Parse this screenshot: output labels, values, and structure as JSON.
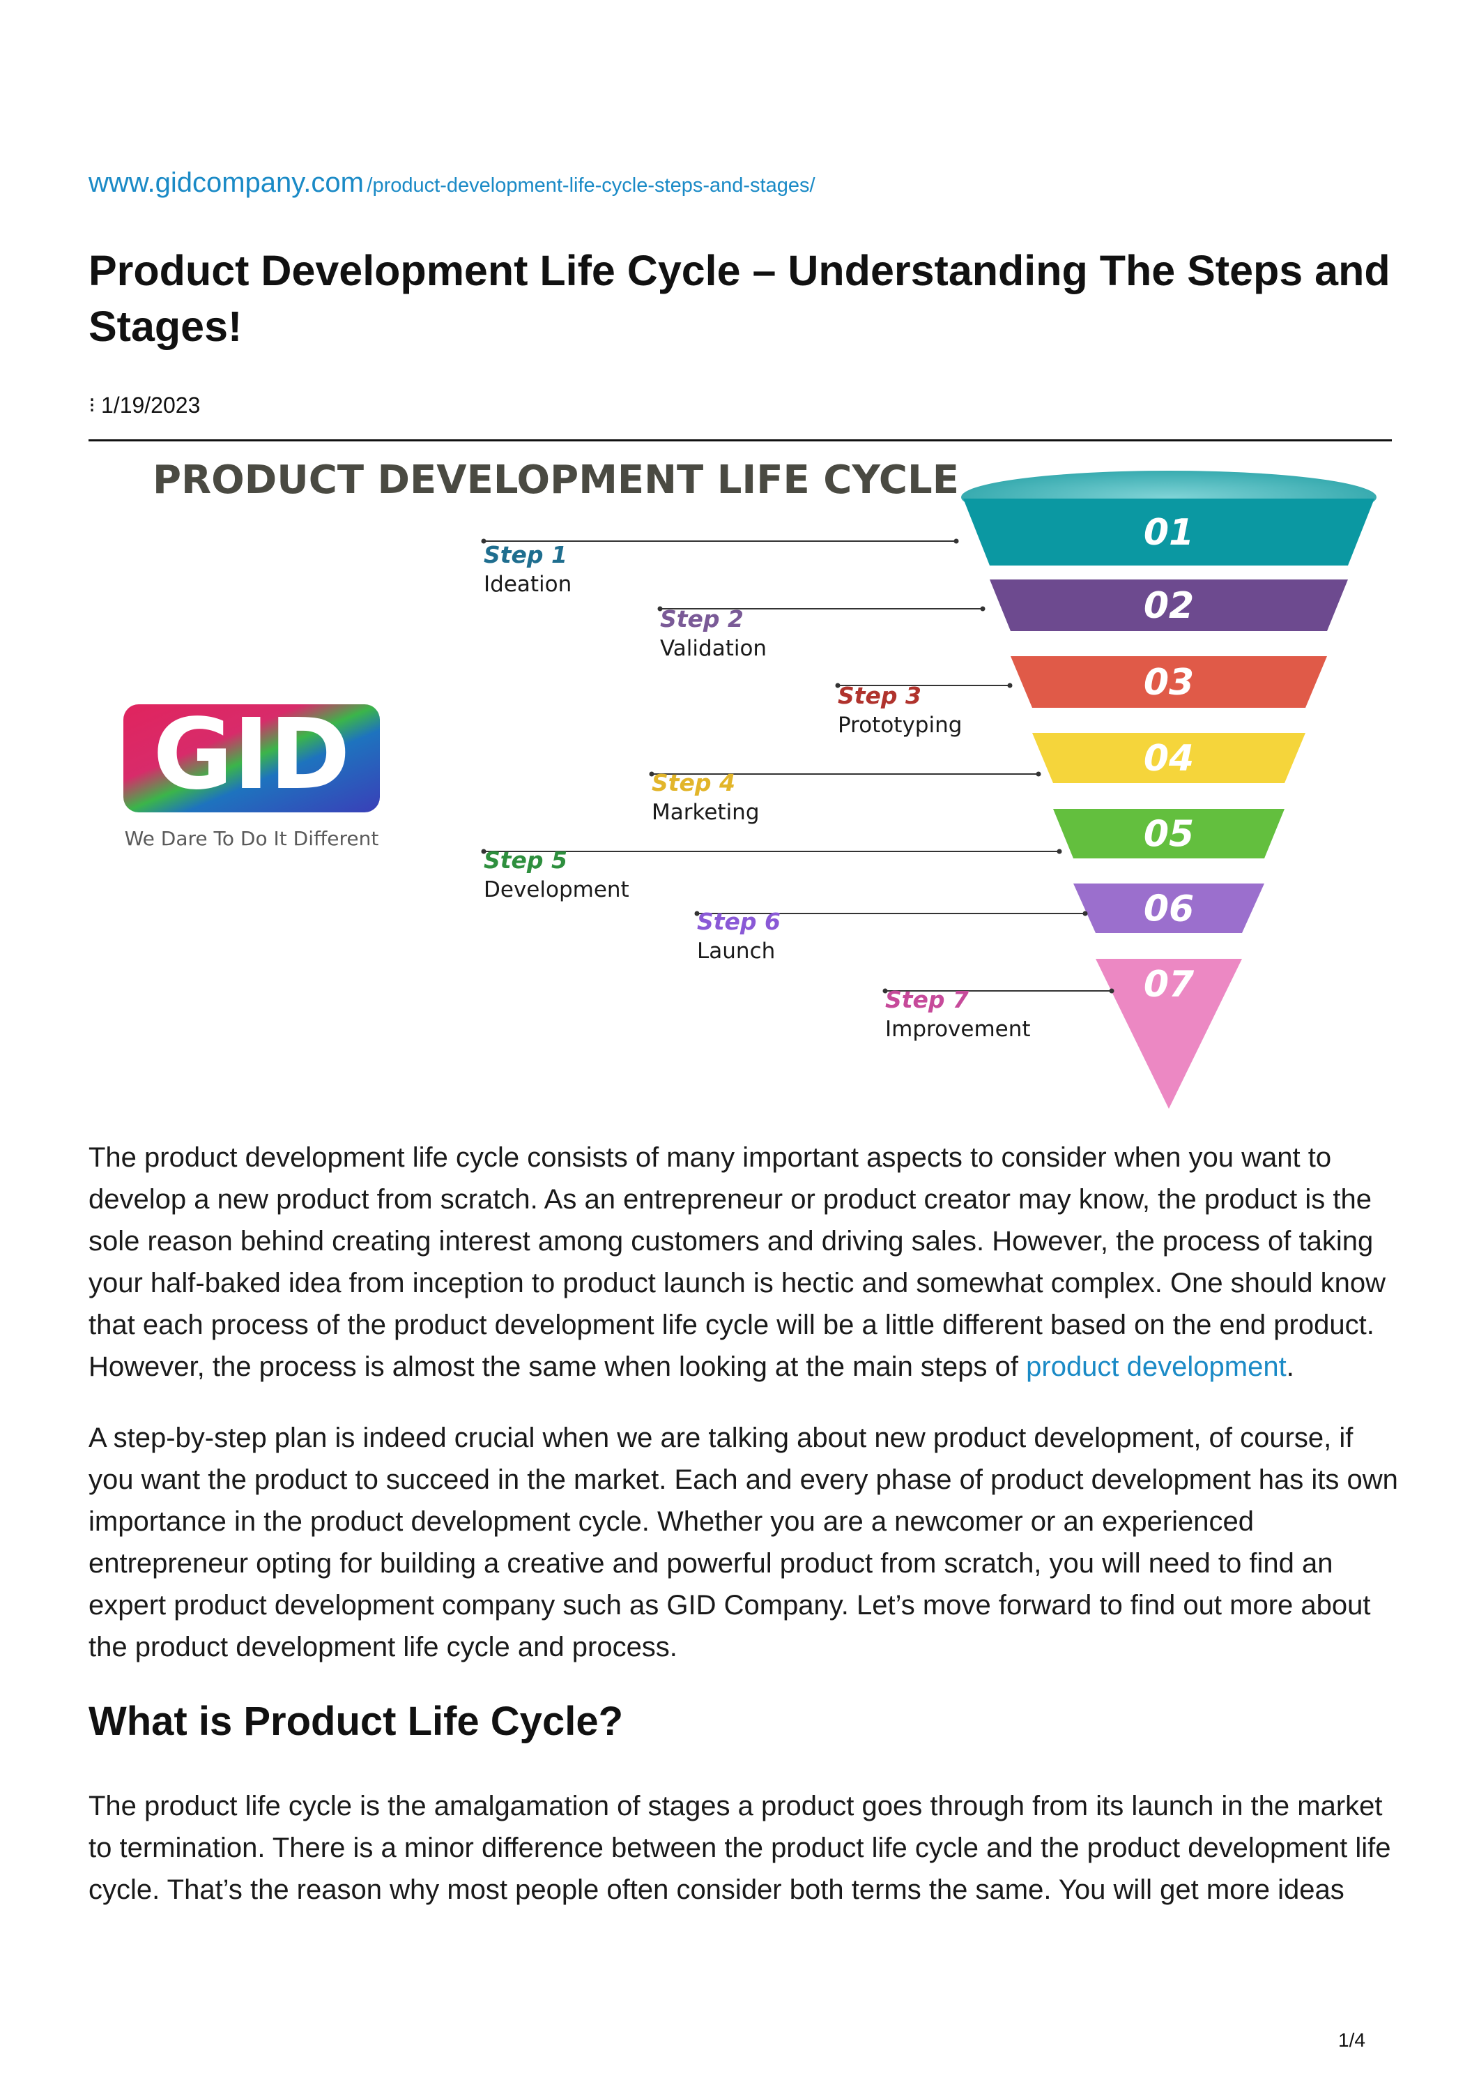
{
  "header": {
    "domain": "www.gidcompany.com",
    "path": "/product-development-life-cycle-steps-and-stages/"
  },
  "article": {
    "title": "Product Development Life Cycle – Understanding The Steps and Stages!",
    "date": "1/19/2023",
    "kebab_icon": "vertical-ellipsis"
  },
  "figure": {
    "title": "PRODUCT DEVELOPMENT LIFE CYCLE",
    "logo": {
      "text": "GID",
      "tagline": "We Dare To Do It Different"
    },
    "steps": [
      {
        "number": "01",
        "step": "Step 1",
        "label": "Ideation",
        "color": "#0b98a2"
      },
      {
        "number": "02",
        "step": "Step 2",
        "label": "Validation",
        "color": "#6d4a8f"
      },
      {
        "number": "03",
        "step": "Step 3",
        "label": "Prototyping",
        "color": "#e05a48"
      },
      {
        "number": "04",
        "step": "Step 4",
        "label": "Marketing",
        "color": "#f5d53b"
      },
      {
        "number": "05",
        "step": "Step 5",
        "label": "Development",
        "color": "#63bf3e"
      },
      {
        "number": "06",
        "step": "Step 6",
        "label": "Launch",
        "color": "#9b6fcd"
      },
      {
        "number": "07",
        "step": "Step 7",
        "label": "Improvement",
        "color": "#ec88c3"
      }
    ],
    "step_text_colors": [
      "#1f6e8f",
      "#7a5a97",
      "#b0332d",
      "#e2b52a",
      "#2e8f3e",
      "#8a59d6",
      "#c64a9a"
    ]
  },
  "body": {
    "p1_text": "The product development life cycle consists of many important aspects to consider when you want to develop a new product from scratch. As an entrepreneur or product creator may know, the product is the sole reason behind creating interest among customers and driving sales. However, the process of taking your half-baked idea from inception to product launch is hectic and somewhat complex. One should know that each process of the product development life cycle will be a little different based on the end product. However, the process is almost the same when looking at the main steps of ",
    "p1_link": "product development",
    "p1_end": ".",
    "p2": "A step-by-step plan is indeed crucial when we are talking about new product development, of course, if you want the product to succeed in the market. Each and every phase of product development has its own importance in the product development cycle. Whether you are a newcomer or an experienced entrepreneur opting for building a creative and powerful product from scratch, you will need to find an expert product development company such as GID Company. Let’s move forward to find out more about the product development life cycle and process.",
    "h2": "What is Product Life Cycle?",
    "p3": "The product life cycle is the amalgamation of stages a product goes through from its launch in the market to termination. There is a minor difference between the product life cycle and the product development life cycle. That’s the reason why most people often consider both terms the same. You will get more ideas"
  },
  "footer": {
    "page": "1/4"
  }
}
